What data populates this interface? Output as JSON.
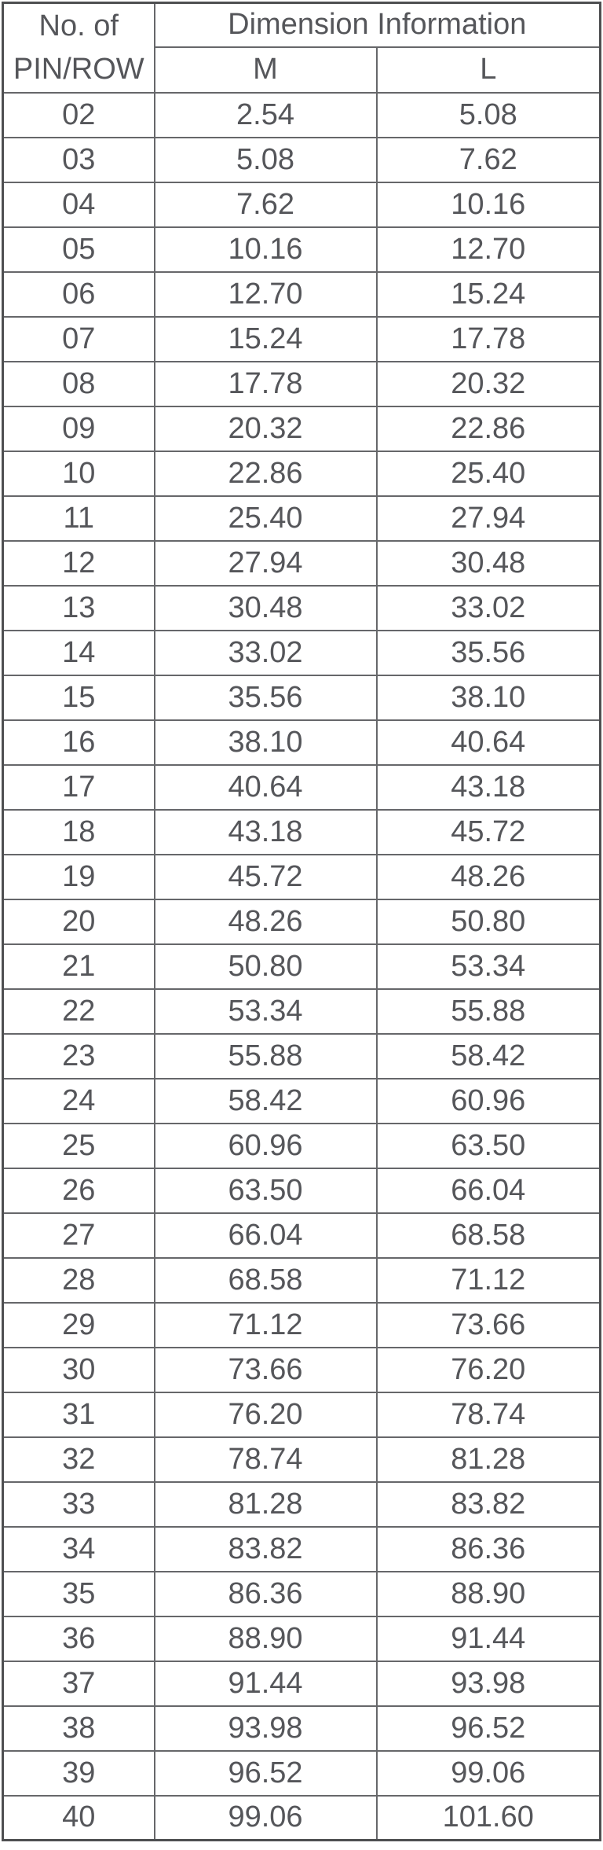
{
  "table": {
    "corner_header": {
      "line1": "No. of",
      "line2": "PIN/ROW"
    },
    "group_header": "Dimension Information",
    "columns": [
      "M",
      "L"
    ],
    "rows": [
      {
        "pin": "02",
        "m": "2.54",
        "l": "5.08"
      },
      {
        "pin": "03",
        "m": "5.08",
        "l": "7.62"
      },
      {
        "pin": "04",
        "m": "7.62",
        "l": "10.16"
      },
      {
        "pin": "05",
        "m": "10.16",
        "l": "12.70"
      },
      {
        "pin": "06",
        "m": "12.70",
        "l": "15.24"
      },
      {
        "pin": "07",
        "m": "15.24",
        "l": "17.78"
      },
      {
        "pin": "08",
        "m": "17.78",
        "l": "20.32"
      },
      {
        "pin": "09",
        "m": "20.32",
        "l": "22.86"
      },
      {
        "pin": "10",
        "m": "22.86",
        "l": "25.40"
      },
      {
        "pin": "11",
        "m": "25.40",
        "l": "27.94"
      },
      {
        "pin": "12",
        "m": "27.94",
        "l": "30.48"
      },
      {
        "pin": "13",
        "m": "30.48",
        "l": "33.02"
      },
      {
        "pin": "14",
        "m": "33.02",
        "l": "35.56"
      },
      {
        "pin": "15",
        "m": "35.56",
        "l": "38.10"
      },
      {
        "pin": "16",
        "m": "38.10",
        "l": "40.64"
      },
      {
        "pin": "17",
        "m": "40.64",
        "l": "43.18"
      },
      {
        "pin": "18",
        "m": "43.18",
        "l": "45.72"
      },
      {
        "pin": "19",
        "m": "45.72",
        "l": "48.26"
      },
      {
        "pin": "20",
        "m": "48.26",
        "l": "50.80"
      },
      {
        "pin": "21",
        "m": "50.80",
        "l": "53.34"
      },
      {
        "pin": "22",
        "m": "53.34",
        "l": "55.88"
      },
      {
        "pin": "23",
        "m": "55.88",
        "l": "58.42"
      },
      {
        "pin": "24",
        "m": "58.42",
        "l": "60.96"
      },
      {
        "pin": "25",
        "m": "60.96",
        "l": "63.50"
      },
      {
        "pin": "26",
        "m": "63.50",
        "l": "66.04"
      },
      {
        "pin": "27",
        "m": "66.04",
        "l": "68.58"
      },
      {
        "pin": "28",
        "m": "68.58",
        "l": "71.12"
      },
      {
        "pin": "29",
        "m": "71.12",
        "l": "73.66"
      },
      {
        "pin": "30",
        "m": "73.66",
        "l": "76.20"
      },
      {
        "pin": "31",
        "m": "76.20",
        "l": "78.74"
      },
      {
        "pin": "32",
        "m": "78.74",
        "l": "81.28"
      },
      {
        "pin": "33",
        "m": "81.28",
        "l": "83.82"
      },
      {
        "pin": "34",
        "m": "83.82",
        "l": "86.36"
      },
      {
        "pin": "35",
        "m": "86.36",
        "l": "88.90"
      },
      {
        "pin": "36",
        "m": "88.90",
        "l": "91.44"
      },
      {
        "pin": "37",
        "m": "91.44",
        "l": "93.98"
      },
      {
        "pin": "38",
        "m": "93.98",
        "l": "96.52"
      },
      {
        "pin": "39",
        "m": "96.52",
        "l": "99.06"
      },
      {
        "pin": "40",
        "m": "99.06",
        "l": "101.60"
      }
    ]
  },
  "colors": {
    "background": "#ffffff",
    "text": "#55565a",
    "grid_line": "#66676a",
    "outer_border": "#4e4f51"
  }
}
